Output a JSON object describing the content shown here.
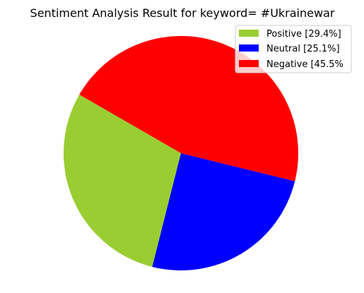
{
  "chart_data": {
    "type": "pie",
    "title": "Sentiment Analysis Result for keyword= #Ukrainewar",
    "slices": [
      {
        "label": "Positive [29.4%]",
        "value": 29.4,
        "color": "#9acd32"
      },
      {
        "label": "Neutral [25.1%]",
        "value": 25.1,
        "color": "#0000ff"
      },
      {
        "label": "Negative [45.5%",
        "value": 45.5,
        "color": "#ff0000"
      }
    ],
    "start_angle_deg": 150,
    "direction": "counterclockwise",
    "legend_position": "top-right"
  }
}
